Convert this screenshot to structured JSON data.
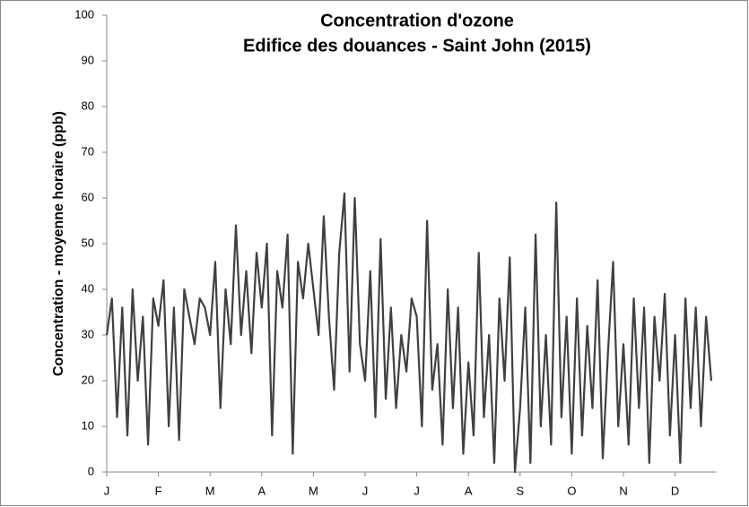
{
  "chart_data": {
    "type": "line",
    "title": "Concentration d'ozone",
    "subtitle": "Edifice des douances - Saint John (2015)",
    "y_label": "Concentration - moyenne horaire (ppb)",
    "xlim": [
      0,
      11.8
    ],
    "xticks": [
      {
        "value": 0,
        "label": "J"
      },
      {
        "value": 1,
        "label": "F"
      },
      {
        "value": 2,
        "label": "M"
      },
      {
        "value": 3,
        "label": "A"
      },
      {
        "value": 4,
        "label": "M"
      },
      {
        "value": 5,
        "label": "J"
      },
      {
        "value": 6,
        "label": "J"
      },
      {
        "value": 7,
        "label": "A"
      },
      {
        "value": 8,
        "label": "S"
      },
      {
        "value": 9,
        "label": "O"
      },
      {
        "value": 10,
        "label": "N"
      },
      {
        "value": 11,
        "label": "D"
      }
    ],
    "ylim": [
      0,
      100
    ],
    "yticks": [
      0,
      10,
      20,
      30,
      40,
      50,
      60,
      70,
      80,
      90,
      100
    ],
    "grid": false,
    "color": "#404040",
    "x": [
      0,
      0.1,
      0.2,
      0.3,
      0.4,
      0.5,
      0.6,
      0.7,
      0.8,
      0.9,
      1,
      1.1,
      1.2,
      1.3,
      1.4,
      1.5,
      1.6,
      1.7,
      1.8,
      1.9,
      2,
      2.1,
      2.2,
      2.3,
      2.4,
      2.5,
      2.6,
      2.7,
      2.8,
      2.9,
      3,
      3.1,
      3.2,
      3.3,
      3.4,
      3.5,
      3.6,
      3.7,
      3.8,
      3.9,
      4,
      4.1,
      4.2,
      4.3,
      4.4,
      4.5,
      4.6,
      4.7,
      4.8,
      4.9,
      5,
      5.1,
      5.2,
      5.3,
      5.4,
      5.5,
      5.6,
      5.7,
      5.8,
      5.9,
      6,
      6.1,
      6.2,
      6.3,
      6.4,
      6.5,
      6.6,
      6.7,
      6.8,
      6.9,
      7,
      7.1,
      7.2,
      7.3,
      7.4,
      7.5,
      7.6,
      7.7,
      7.8,
      7.9,
      8,
      8.1,
      8.2,
      8.3,
      8.4,
      8.5,
      8.6,
      8.7,
      8.8,
      8.9,
      9,
      9.1,
      9.2,
      9.3,
      9.4,
      9.5,
      9.6,
      9.7,
      9.8,
      9.9,
      10,
      10.1,
      10.2,
      10.3,
      10.4,
      10.5,
      10.6,
      10.7,
      10.8,
      10.9,
      11,
      11.1,
      11.2,
      11.3,
      11.4,
      11.5,
      11.6,
      11.7
    ],
    "values": [
      30,
      38,
      12,
      36,
      8,
      40,
      20,
      34,
      6,
      38,
      32,
      42,
      10,
      36,
      7,
      40,
      34,
      28,
      38,
      36,
      30,
      46,
      14,
      40,
      28,
      54,
      30,
      44,
      26,
      48,
      36,
      50,
      8,
      44,
      36,
      52,
      4,
      46,
      38,
      50,
      40,
      30,
      56,
      34,
      18,
      48,
      61,
      22,
      60,
      28,
      20,
      44,
      12,
      51,
      16,
      36,
      14,
      30,
      22,
      38,
      34,
      10,
      55,
      18,
      28,
      6,
      40,
      14,
      36,
      4,
      24,
      8,
      48,
      12,
      30,
      2,
      38,
      20,
      47,
      0,
      14,
      36,
      2,
      52,
      10,
      30,
      6,
      59,
      12,
      34,
      4,
      38,
      8,
      32,
      14,
      42,
      3,
      26,
      46,
      10,
      28,
      6,
      38,
      14,
      36,
      2,
      34,
      20,
      39,
      8,
      30,
      2,
      38,
      14,
      36,
      10,
      34,
      20
    ]
  }
}
